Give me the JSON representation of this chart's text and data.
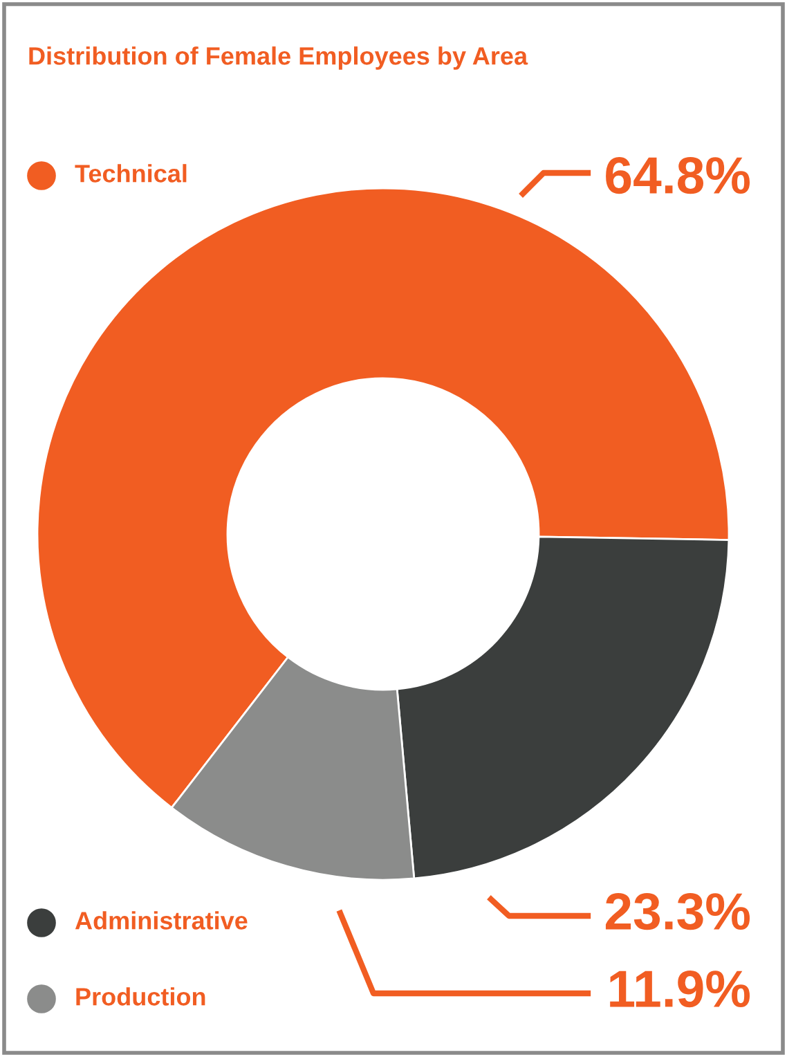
{
  "chart_data": {
    "type": "donut",
    "title": "Distribution of Female Employees by Area",
    "categories": [
      "Technical",
      "Administrative",
      "Production"
    ],
    "values": [
      64.8,
      23.3,
      11.9
    ],
    "colors": [
      "#f15d22",
      "#3b3e3d",
      "#8b8c8b"
    ],
    "value_labels": [
      "64.8%",
      "23.3%",
      "11.9%"
    ],
    "legend": "left"
  }
}
